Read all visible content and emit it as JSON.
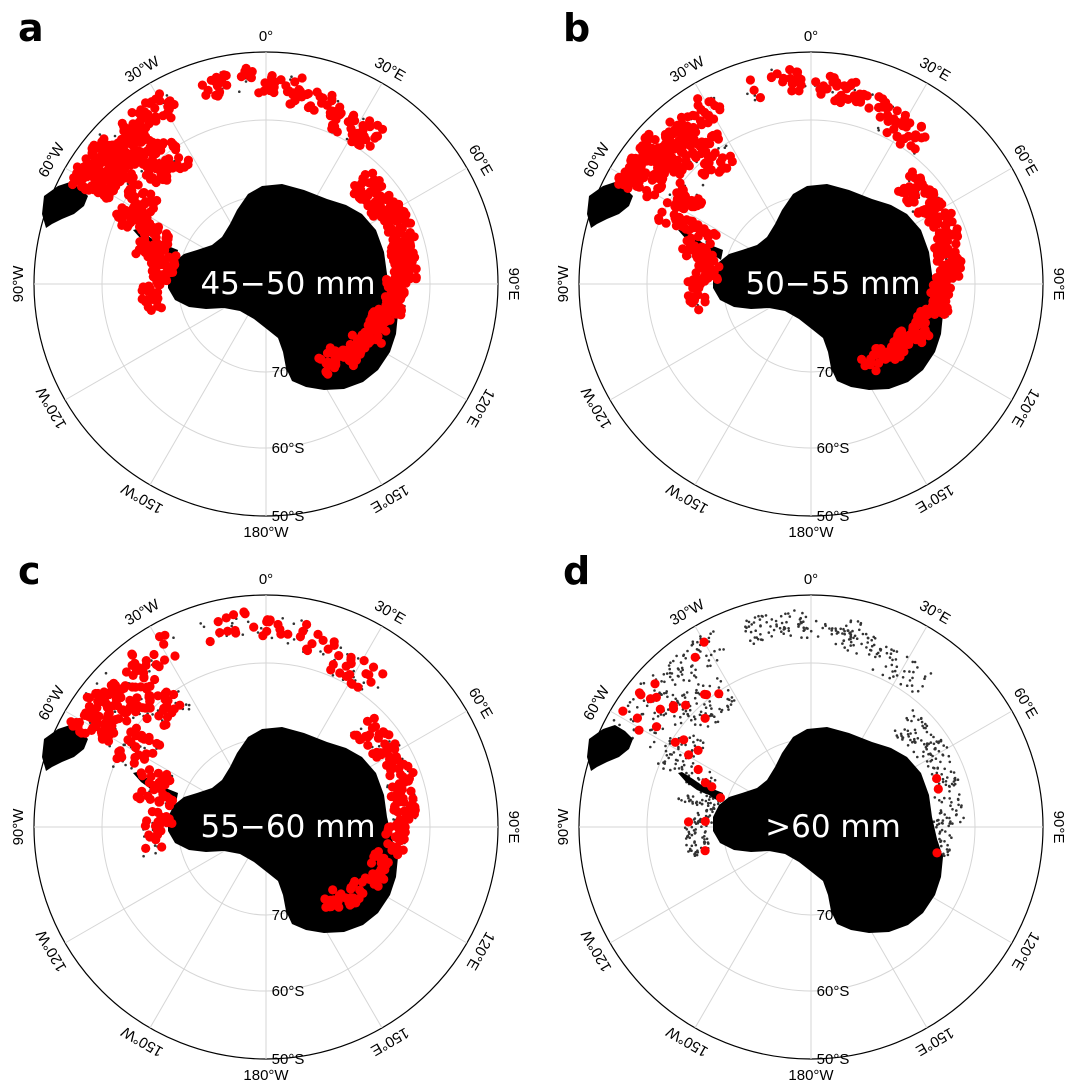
{
  "figure": {
    "panels": [
      {
        "letter": "a",
        "size_label": "45−50 mm"
      },
      {
        "letter": "b",
        "size_label": "50−55 mm"
      },
      {
        "letter": "c",
        "size_label": "55−60 mm"
      },
      {
        "letter": "d",
        "size_label": ">60 mm"
      }
    ],
    "longitude_labels": [
      "0°",
      "30°E",
      "60°E",
      "90°E",
      "120°E",
      "150°E",
      "180°W",
      "150°W",
      "120°W",
      "90°W",
      "60°W",
      "30°W"
    ],
    "latitude_labels": [
      "70°S",
      "60°S",
      "50°S"
    ],
    "colors": {
      "highlight_points": "#ff0000",
      "all_points": "#333333",
      "land": "#000000",
      "grid": "#d6d6d6"
    }
  }
}
